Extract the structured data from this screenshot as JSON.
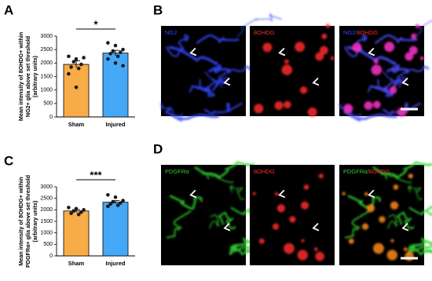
{
  "chart_data": [
    {
      "type": "bar",
      "panel": "A",
      "ylabel": [
        "Mean intensity of 8OHDG+ within",
        "NG2+ glia above set threshold",
        "(arbitrary units)"
      ],
      "categories": [
        "Sham",
        "Injured"
      ],
      "values": [
        1950,
        2370
      ],
      "errors": [
        130,
        100
      ],
      "colors": [
        "#f8ac48",
        "#45a8f7"
      ],
      "points": [
        [
          2250,
          2150,
          2200,
          2050,
          1950,
          1850,
          1800,
          1600,
          1100
        ],
        [
          2750,
          2650,
          2500,
          2450,
          2400,
          2350,
          2250,
          2150,
          2000,
          1900
        ]
      ],
      "significance": "*",
      "ylim": [
        0,
        3000
      ],
      "yticks": [
        0,
        500,
        1000,
        1500,
        2000,
        2500,
        3000
      ]
    },
    {
      "type": "bar",
      "panel": "C",
      "ylabel": [
        "Mean intensity of 8OHDG+ within",
        "PDGFRα+ glia above set threshold",
        "(arbitrary units)"
      ],
      "categories": [
        "Sham",
        "Injured"
      ],
      "values": [
        1950,
        2330
      ],
      "errors": [
        60,
        70
      ],
      "colors": [
        "#f8ac48",
        "#45a8f7"
      ],
      "points": [
        [
          2100,
          2050,
          2000,
          1950,
          1900,
          1850,
          1800
        ],
        [
          2650,
          2550,
          2400,
          2350,
          2300,
          2250,
          2200,
          2150
        ]
      ],
      "significance": "***",
      "ylim": [
        0,
        3000
      ],
      "yticks": [
        0,
        500,
        1000,
        1500,
        2000,
        2500,
        3000
      ]
    }
  ],
  "images": [
    {
      "panel": "B",
      "labels": [
        [
          "NG2"
        ],
        [
          "8OHDG"
        ],
        [
          "NG2/",
          "8OHDG"
        ]
      ]
    },
    {
      "panel": "D",
      "labels": [
        [
          "PDGFRα"
        ],
        [
          "8OHDG"
        ],
        [
          "PDGFRα/",
          "8OHDG"
        ]
      ]
    }
  ]
}
